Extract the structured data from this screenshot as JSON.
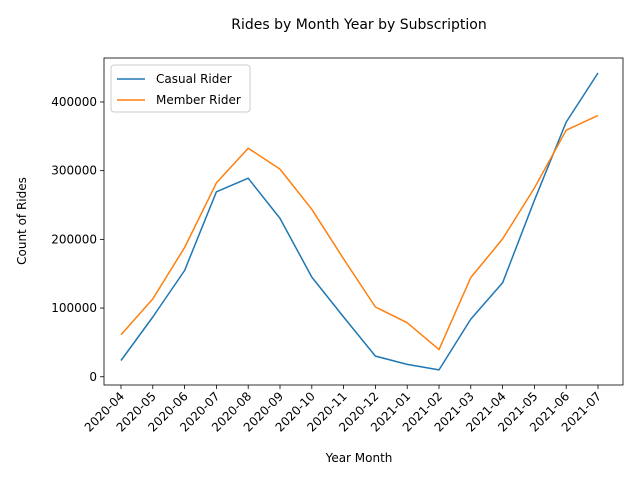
{
  "chart_data": {
    "type": "line",
    "title": "Rides by Month Year by Subscription",
    "xlabel": "Year Month",
    "ylabel": "Count of Rides",
    "categories": [
      "2020-04",
      "2020-05",
      "2020-06",
      "2020-07",
      "2020-08",
      "2020-09",
      "2020-10",
      "2020-11",
      "2020-12",
      "2021-01",
      "2021-02",
      "2021-03",
      "2021-04",
      "2021-05",
      "2021-06",
      "2021-07"
    ],
    "series": [
      {
        "name": "Casual Rider",
        "color": "#1f77b4",
        "values": [
          23600,
          87000,
          154700,
          269300,
          289000,
          230500,
          145000,
          87000,
          30000,
          18000,
          10000,
          83900,
          136800,
          256900,
          370700,
          442100
        ]
      },
      {
        "name": "Member Rider",
        "color": "#ff7f0e",
        "values": [
          61100,
          113400,
          188200,
          282200,
          332700,
          302300,
          243700,
          171600,
          101500,
          78700,
          39500,
          144500,
          200600,
          274700,
          358900,
          380400
        ]
      }
    ],
    "y_ticks": [
      0,
      100000,
      200000,
      300000,
      400000
    ],
    "ylim": [
      -12000,
      464000
    ],
    "grid": false,
    "legend": "upper-left"
  }
}
